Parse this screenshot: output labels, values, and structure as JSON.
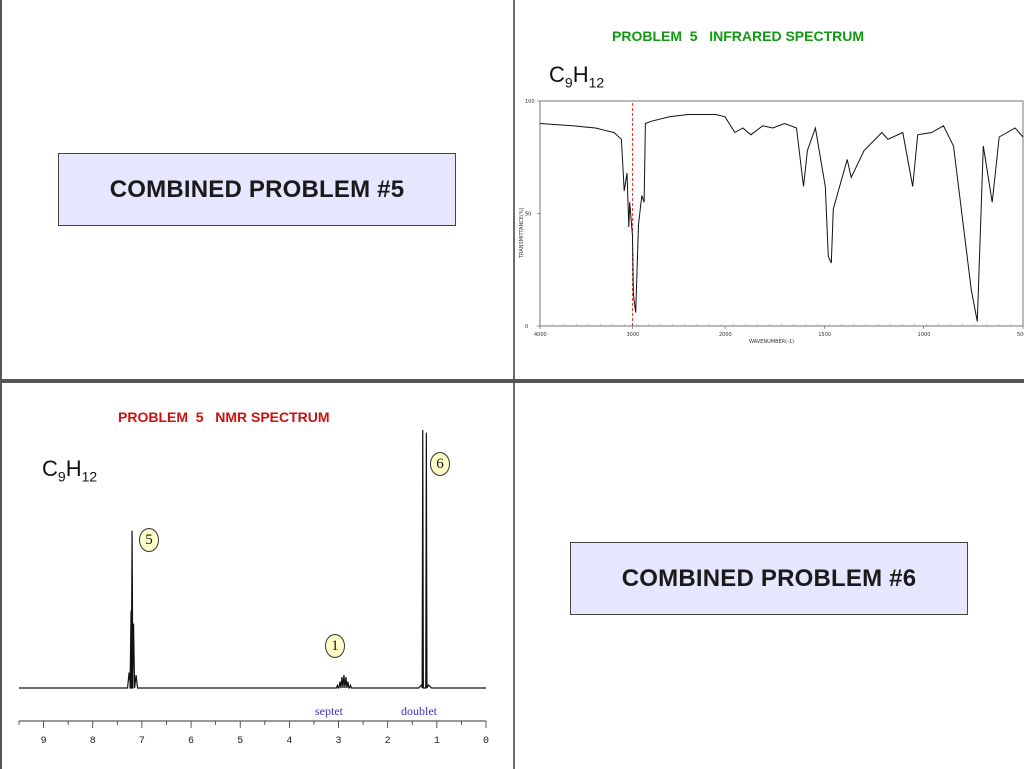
{
  "slides": {
    "combined5": {
      "label": "COMBINED PROBLEM #5"
    },
    "combined6": {
      "label": "COMBINED PROBLEM #6"
    },
    "ir": {
      "title": "PROBLEM  5   INFRARED SPECTRUM",
      "formula": {
        "c": "C",
        "c_sub": "9",
        "h": "H",
        "h_sub": "12"
      },
      "ylabel": "TRANSMITTANCE(%)",
      "xlabel": "WAVENUMBER(-1)"
    },
    "nmr": {
      "title": "PROBLEM  5   NMR SPECTRUM",
      "formula": {
        "c": "C",
        "c_sub": "9",
        "h": "H",
        "h_sub": "12"
      },
      "peak_labels": {
        "aromatic": "5",
        "septet": "1",
        "doublet": "6"
      },
      "multiplicity": {
        "septet": "septet",
        "doublet": "doublet"
      }
    }
  },
  "chart_data": [
    {
      "type": "line",
      "title": "PROBLEM  5   INFRARED SPECTRUM",
      "xlabel": "WAVENUMBER(-1)",
      "ylabel": "TRANSMITTANCE(%)",
      "x_ticks": [
        "4000",
        "3000",
        "2000",
        "1500",
        "1000",
        "500"
      ],
      "y_ticks": [
        "0",
        "50",
        "100"
      ],
      "xlim": [
        4000,
        500
      ],
      "ylim": [
        0,
        100
      ],
      "marker_line_x": 3000,
      "x": [
        4000,
        3650,
        3400,
        3300,
        3200,
        3120,
        3090,
        3060,
        3040,
        3030,
        3000,
        2990,
        2965,
        2935,
        2900,
        2875,
        2860,
        2800,
        2600,
        2400,
        2100,
        2000,
        1950,
        1910,
        1870,
        1810,
        1760,
        1700,
        1640,
        1605,
        1585,
        1545,
        1495,
        1480,
        1465,
        1455,
        1385,
        1365,
        1300,
        1210,
        1180,
        1105,
        1055,
        1030,
        960,
        900,
        850,
        760,
        730,
        700,
        655,
        620,
        540,
        500
      ],
      "y": [
        90,
        89,
        88,
        87,
        86,
        83,
        60,
        68,
        44,
        55,
        40,
        14,
        6,
        45,
        58,
        55,
        90,
        91,
        93,
        94,
        94,
        93,
        86,
        88,
        85,
        89,
        88,
        90,
        88,
        62,
        78,
        88,
        62,
        31,
        28,
        52,
        74,
        66,
        78,
        86,
        83,
        86,
        62,
        85,
        86,
        89,
        80,
        16,
        2,
        80,
        55,
        84,
        88,
        84
      ]
    },
    {
      "type": "line",
      "title": "PROBLEM  5   NMR SPECTRUM",
      "x_ticks": [
        "9",
        "8",
        "7",
        "6",
        "5",
        "4",
        "3",
        "2",
        "1",
        "0"
      ],
      "xlim": [
        9.5,
        0
      ],
      "peaks": [
        {
          "ppm": 7.2,
          "integration": "5",
          "height": 0.61
        },
        {
          "ppm": 2.9,
          "integration": "1",
          "multiplicity": "septet",
          "height": 0.05
        },
        {
          "ppm": 1.25,
          "integration": "6",
          "multiplicity": "doublet",
          "height": 1.0
        }
      ]
    }
  ]
}
